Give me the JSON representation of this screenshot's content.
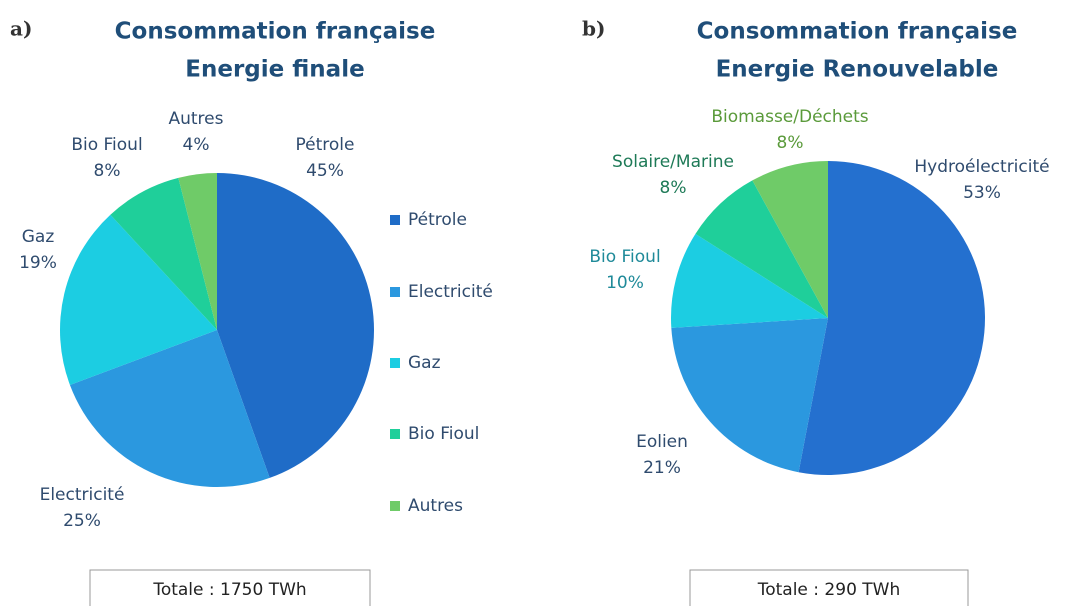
{
  "chart_data": [
    {
      "type": "pie",
      "label": "a)",
      "title": "Consommation française",
      "subtitle": "Energie finale",
      "categories": [
        "Pétrole",
        "Electricité",
        "Gaz",
        "Bio Fioul",
        "Autres"
      ],
      "values": [
        45,
        25,
        19,
        8,
        4
      ],
      "value_labels": [
        "45%",
        "25%",
        "19%",
        "8%",
        "4%"
      ],
      "colors": [
        "#1f6cc7",
        "#2b98df",
        "#1ccde2",
        "#1fcf9a",
        "#6fcb68"
      ],
      "label_colors": [
        "#2f4b6e",
        "#2f4b6e",
        "#2f4b6e",
        "#2f4b6e",
        "#2f4b6e"
      ],
      "legend": true,
      "annotation": "Totale : 1750 TWh"
    },
    {
      "type": "pie",
      "label": "b)",
      "title": "Consommation française",
      "subtitle": "Energie Renouvelable",
      "categories": [
        "Hydroélectricité",
        "Eolien",
        "Bio Fioul",
        "Solaire/Marine",
        "Biomasse/Déchets"
      ],
      "values": [
        53,
        21,
        10,
        8,
        8
      ],
      "value_labels": [
        "53%",
        "21%",
        "10%",
        "8%",
        "8%"
      ],
      "colors": [
        "#2470cf",
        "#2b98df",
        "#1ccde2",
        "#1fcf9a",
        "#6fcb68"
      ],
      "label_colors": [
        "#2f4b6e",
        "#2f4b6e",
        "#1f8a99",
        "#1e7a57",
        "#5a9a3a"
      ],
      "legend": false,
      "annotation": "Totale : 290 TWh"
    }
  ]
}
